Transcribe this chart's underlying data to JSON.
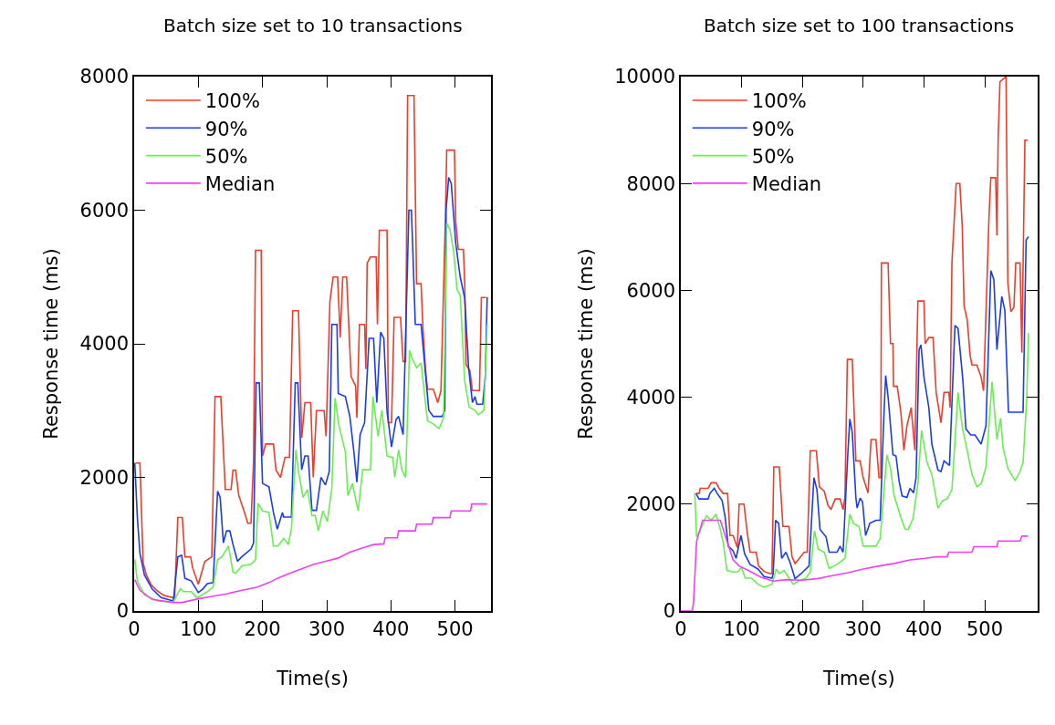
{
  "chart_data": [
    {
      "type": "line",
      "title": "Batch size set to 10 transactions",
      "xlabel": "Time(s)",
      "ylabel": "Response time (ms)",
      "xlim": [
        0,
        556
      ],
      "xticks": [
        0,
        100,
        200,
        300,
        400,
        500
      ],
      "ylim": [
        0,
        8000
      ],
      "yticks": [
        0,
        2000,
        4000,
        6000,
        8000
      ],
      "grid": false,
      "legend": "top left",
      "marker": "none",
      "line_style": "solid",
      "series": [
        {
          "name": "100%",
          "color": "#f03c28",
          "x": [
            2,
            9,
            14,
            19,
            26,
            35,
            47,
            61,
            63,
            68,
            75,
            79,
            88,
            91,
            100,
            110,
            121,
            126,
            135,
            142,
            151,
            154,
            158,
            163,
            172,
            177,
            182,
            186,
            189,
            198,
            200,
            205,
            217,
            221,
            228,
            235,
            242,
            247,
            256,
            261,
            266,
            275,
            279,
            284,
            296,
            299,
            305,
            310,
            317,
            321,
            325,
            331,
            338,
            345,
            347,
            351,
            359,
            361,
            363,
            368,
            377,
            379,
            382,
            394,
            396,
            401,
            405,
            415,
            419,
            423,
            426,
            436,
            440,
            447,
            450,
            454,
            457,
            466,
            473,
            478,
            485,
            487,
            499,
            501,
            505,
            513,
            515,
            517,
            523,
            527,
            538,
            541,
            548
          ],
          "values": [
            2215,
            2215,
            720,
            540,
            400,
            310,
            230,
            200,
            170,
            1400,
            1400,
            810,
            810,
            650,
            400,
            740,
            810,
            3210,
            3210,
            1820,
            1820,
            2110,
            2110,
            1730,
            1475,
            1315,
            1315,
            2230,
            5400,
            5400,
            2320,
            2500,
            2500,
            2110,
            2000,
            2300,
            2300,
            4495,
            4495,
            2590,
            3120,
            3120,
            2000,
            3000,
            3000,
            2616,
            4633,
            5000,
            5000,
            4096,
            5000,
            5000,
            3507,
            3370,
            2890,
            4290,
            4290,
            3620,
            5206,
            5300,
            5300,
            4290,
            5700,
            5700,
            2820,
            2820,
            4395,
            4395,
            3735,
            3735,
            7716,
            7716,
            4900,
            4900,
            4220,
            3600,
            3320,
            3320,
            3120,
            3300,
            5917,
            6900,
            6900,
            5826,
            5413,
            5413,
            4908,
            3690,
            3600,
            3300,
            3300,
            4693,
            4693
          ]
        },
        {
          "name": "90%",
          "color": "#1a3cf0",
          "x": [
            1,
            5,
            9,
            16,
            28,
            42,
            61,
            68,
            74,
            79,
            89,
            100,
            107,
            114,
            123,
            130,
            134,
            139,
            144,
            149,
            154,
            161,
            168,
            182,
            186,
            190,
            195,
            200,
            210,
            217,
            223,
            231,
            233,
            245,
            251,
            255,
            261,
            266,
            271,
            277,
            284,
            291,
            298,
            304,
            308,
            316,
            318,
            329,
            336,
            342,
            347,
            352,
            359,
            366,
            373,
            378,
            384,
            389,
            394,
            401,
            408,
            412,
            419,
            428,
            432,
            438,
            447,
            459,
            466,
            480,
            484,
            486,
            490,
            494,
            501,
            508,
            515,
            521,
            527,
            531,
            534,
            543,
            547,
            550
          ],
          "values": [
            2215,
            1400,
            860,
            540,
            330,
            200,
            150,
            810,
            835,
            490,
            450,
            275,
            330,
            410,
            425,
            1795,
            1700,
            1020,
            1200,
            1200,
            995,
            745,
            813,
            927,
            1020,
            3415,
            3415,
            1910,
            1860,
            1475,
            1224,
            1475,
            1406,
            1406,
            3415,
            3415,
            2114,
            2320,
            2320,
            1507,
            1507,
            2000,
            1886,
            2090,
            4290,
            4290,
            3255,
            3210,
            2913,
            2410,
            1930,
            2640,
            2820,
            4082,
            4082,
            3120,
            4175,
            4082,
            2980,
            2456,
            2867,
            2913,
            2640,
            6000,
            6000,
            4290,
            4290,
            3005,
            2913,
            2913,
            3005,
            6009,
            6490,
            6400,
            5505,
            5000,
            4680,
            3640,
            3120,
            3210,
            3096,
            3096,
            3507,
            4700
          ]
        },
        {
          "name": "50%",
          "color": "#66f050",
          "x": [
            1,
            5,
            16,
            37,
            61,
            68,
            72,
            77,
            89,
            98,
            114,
            123,
            130,
            137,
            144,
            147,
            154,
            158,
            168,
            182,
            189,
            193,
            200,
            210,
            217,
            224,
            233,
            240,
            245,
            252,
            256,
            263,
            270,
            277,
            282,
            287,
            294,
            301,
            308,
            313,
            319,
            329,
            333,
            340,
            349,
            356,
            368,
            372,
            380,
            386,
            394,
            403,
            406,
            412,
            417,
            423,
            429,
            433,
            440,
            447,
            457,
            466,
            475,
            482,
            487,
            492,
            498,
            503,
            508,
            515,
            522,
            531,
            536,
            545,
            550
          ],
          "values": [
            770,
            450,
            240,
            150,
            130,
            265,
            333,
            290,
            290,
            196,
            290,
            356,
            767,
            813,
            927,
            973,
            584,
            562,
            676,
            699,
            767,
            1612,
            1498,
            1475,
            973,
            973,
            1087,
            995,
            1224,
            2410,
            2090,
            1703,
            1817,
            1429,
            1429,
            1200,
            1498,
            1338,
            1840,
            3187,
            2776,
            2388,
            1726,
            1908,
            1498,
            2114,
            2114,
            3210,
            2616,
            3005,
            2320,
            2297,
            2000,
            2410,
            2114,
            2000,
            3900,
            3785,
            3643,
            3712,
            2845,
            2800,
            2730,
            2890,
            5803,
            5711,
            5367,
            4816,
            4725,
            3438,
            3050,
            3005,
            2936,
            3005,
            4290
          ]
        },
        {
          "name": "Median",
          "color": "#f040f0",
          "x": [
            1,
            9,
            28,
            61,
            75,
            100,
            121,
            144,
            168,
            191,
            210,
            224,
            242,
            261,
            280,
            298,
            317,
            336,
            354,
            373,
            389,
            391,
            410,
            412,
            438,
            440,
            464,
            466,
            492,
            494,
            524,
            526,
            550
          ],
          "values": [
            470,
            310,
            173,
            128,
            128,
            183,
            219,
            256,
            310,
            356,
            425,
            493,
            562,
            630,
            699,
            744,
            790,
            881,
            940,
            995,
            1005,
            1096,
            1096,
            1200,
            1200,
            1301,
            1301,
            1397,
            1397,
            1498,
            1498,
            1603,
            1603
          ]
        }
      ]
    },
    {
      "type": "line",
      "title": "Batch size set to 100 transactions",
      "xlabel": "Time(s)",
      "ylabel": "Response time (ms)",
      "xlim": [
        0,
        587
      ],
      "xticks": [
        0,
        100,
        200,
        300,
        400,
        500
      ],
      "ylim": [
        0,
        10000
      ],
      "yticks": [
        0,
        2000,
        4000,
        6000,
        8000,
        10000
      ],
      "grid": false,
      "legend": "top left",
      "marker": "none",
      "line_style": "solid",
      "series": [
        {
          "name": "100%",
          "color": "#f03c28",
          "x": [
            25,
            30,
            32,
            45,
            50,
            58,
            63,
            70,
            77,
            81,
            86,
            93,
            96,
            104,
            109,
            114,
            124,
            128,
            137,
            147,
            150,
            153,
            162,
            168,
            178,
            183,
            188,
            193,
            203,
            208,
            213,
            223,
            228,
            236,
            242,
            247,
            254,
            262,
            267,
            270,
            274,
            282,
            288,
            295,
            300,
            308,
            313,
            321,
            326,
            329,
            330,
            333,
            341,
            345,
            349,
            350,
            356,
            362,
            367,
            372,
            379,
            385,
            390,
            400,
            402,
            408,
            415,
            420,
            428,
            433,
            441,
            443,
            446,
            453,
            459,
            463,
            466,
            471,
            476,
            479,
            487,
            494,
            498,
            507,
            510,
            518,
            520,
            522,
            525,
            535,
            538,
            543,
            548,
            551,
            558,
            561,
            566,
            571
          ],
          "values": [
            2200,
            2200,
            2296,
            2296,
            2400,
            2400,
            2296,
            2200,
            2200,
            1413,
            1413,
            1185,
            2000,
            2000,
            1500,
            1100,
            1100,
            843,
            740,
            700,
            700,
            2695,
            2695,
            1584,
            1584,
            1014,
            889,
            957,
            1100,
            1100,
            3000,
            3000,
            2325,
            2240,
            1983,
            1897,
            2097,
            2097,
            1897,
            2125,
            4707,
            4707,
            2809,
            2809,
            2496,
            2211,
            3208,
            3208,
            2496,
            2496,
            6513,
            6513,
            6513,
            5003,
            5003,
            4205,
            4205,
            3720,
            3008,
            3464,
            3806,
            3008,
            5800,
            5800,
            5003,
            5117,
            5117,
            4091,
            3521,
            4091,
            4091,
            3806,
            6513,
            8000,
            8000,
            7197,
            5704,
            5459,
            4775,
            4604,
            4604,
            4376,
            4120,
            7396,
            8108,
            8108,
            7026,
            8820,
            9903,
            10000,
            6142,
            5601,
            5687,
            6513,
            6513,
            4832,
            8809,
            8809
          ]
        },
        {
          "name": "90%",
          "color": "#1a3cf0",
          "x": [
            25,
            30,
            45,
            48,
            55,
            60,
            68,
            73,
            78,
            86,
            91,
            99,
            105,
            114,
            127,
            137,
            150,
            152,
            156,
            161,
            166,
            173,
            180,
            188,
            198,
            211,
            219,
            224,
            229,
            239,
            244,
            257,
            262,
            267,
            274,
            278,
            282,
            288,
            290,
            295,
            299,
            304,
            311,
            321,
            328,
            334,
            337,
            341,
            349,
            354,
            359,
            364,
            372,
            377,
            383,
            387,
            392,
            395,
            400,
            408,
            413,
            423,
            428,
            433,
            442,
            451,
            456,
            464,
            469,
            477,
            484,
            494,
            502,
            510,
            515,
            520,
            528,
            533,
            539,
            563,
            568,
            572
          ],
          "values": [
            2200,
            2097,
            2097,
            2200,
            2296,
            2200,
            2068,
            1755,
            1214,
            1128,
            986,
            1413,
            1071,
            872,
            786,
            644,
            615,
            700,
            1698,
            1641,
            986,
            1100,
            900,
            604,
            700,
            843,
            2496,
            2268,
            1527,
            1385,
            1100,
            1100,
            1214,
            1100,
            2781,
            3595,
            3350,
            2125,
            1926,
            2114,
            2040,
            1413,
            1641,
            1698,
            1698,
            3635,
            4405,
            4006,
            2923,
            2900,
            2439,
            2154,
            2125,
            2296,
            2211,
            2496,
            4889,
            4980,
            4376,
            3806,
            3122,
            2638,
            2610,
            2809,
            2724,
            5345,
            5288,
            4319,
            3407,
            3293,
            3293,
            3122,
            3464,
            6370,
            6200,
            4889,
            5886,
            5630,
            3720,
            3720,
            6940,
            7008
          ]
        },
        {
          "name": "50%",
          "color": "#66f050",
          "x": [
            23,
            26,
            35,
            42,
            50,
            58,
            65,
            70,
            76,
            86,
            93,
            100,
            106,
            116,
            127,
            137,
            150,
            157,
            162,
            170,
            178,
            185,
            196,
            206,
            213,
            220,
            226,
            236,
            244,
            257,
            270,
            278,
            284,
            293,
            300,
            321,
            328,
            339,
            345,
            351,
            362,
            369,
            374,
            382,
            390,
            396,
            405,
            413,
            423,
            431,
            438,
            446,
            456,
            463,
            469,
            479,
            487,
            494,
            502,
            512,
            520,
            526,
            530,
            538,
            550,
            558,
            563,
            569,
            572
          ],
          "values": [
            2211,
            1385,
            1584,
            1783,
            1698,
            1812,
            1527,
            1271,
            758,
            729,
            729,
            815,
            615,
            615,
            501,
            444,
            501,
            786,
            700,
            758,
            615,
            501,
            570,
            615,
            729,
            1500,
            1157,
            1100,
            798,
            872,
            986,
            1812,
            1641,
            1584,
            1214,
            1214,
            1356,
            2923,
            2667,
            2154,
            1755,
            1527,
            1527,
            1726,
            2382,
            3379,
            2781,
            2553,
            1926,
            2068,
            2097,
            2268,
            4091,
            3436,
            3122,
            2553,
            2325,
            2382,
            2695,
            4290,
            3208,
            3607,
            3065,
            2667,
            2439,
            2610,
            2781,
            3977,
            5202
          ]
        },
        {
          "name": "Median",
          "color": "#f040f0",
          "x": [
            0,
            19,
            21,
            26,
            31,
            36,
            65,
            73,
            86,
            96,
            111,
            132,
            152,
            173,
            198,
            224,
            249,
            275,
            300,
            326,
            351,
            377,
            402,
            420,
            438,
            441,
            479,
            482,
            520,
            522,
            558,
            561,
            571
          ],
          "values": [
            0,
            0,
            160,
            1299,
            1500,
            1698,
            1698,
            1413,
            957,
            843,
            758,
            632,
            558,
            587,
            575,
            604,
            661,
            718,
            786,
            843,
            889,
            957,
            986,
            1014,
            1014,
            1100,
            1100,
            1202,
            1202,
            1310,
            1310,
            1402,
            1402
          ]
        }
      ]
    }
  ]
}
